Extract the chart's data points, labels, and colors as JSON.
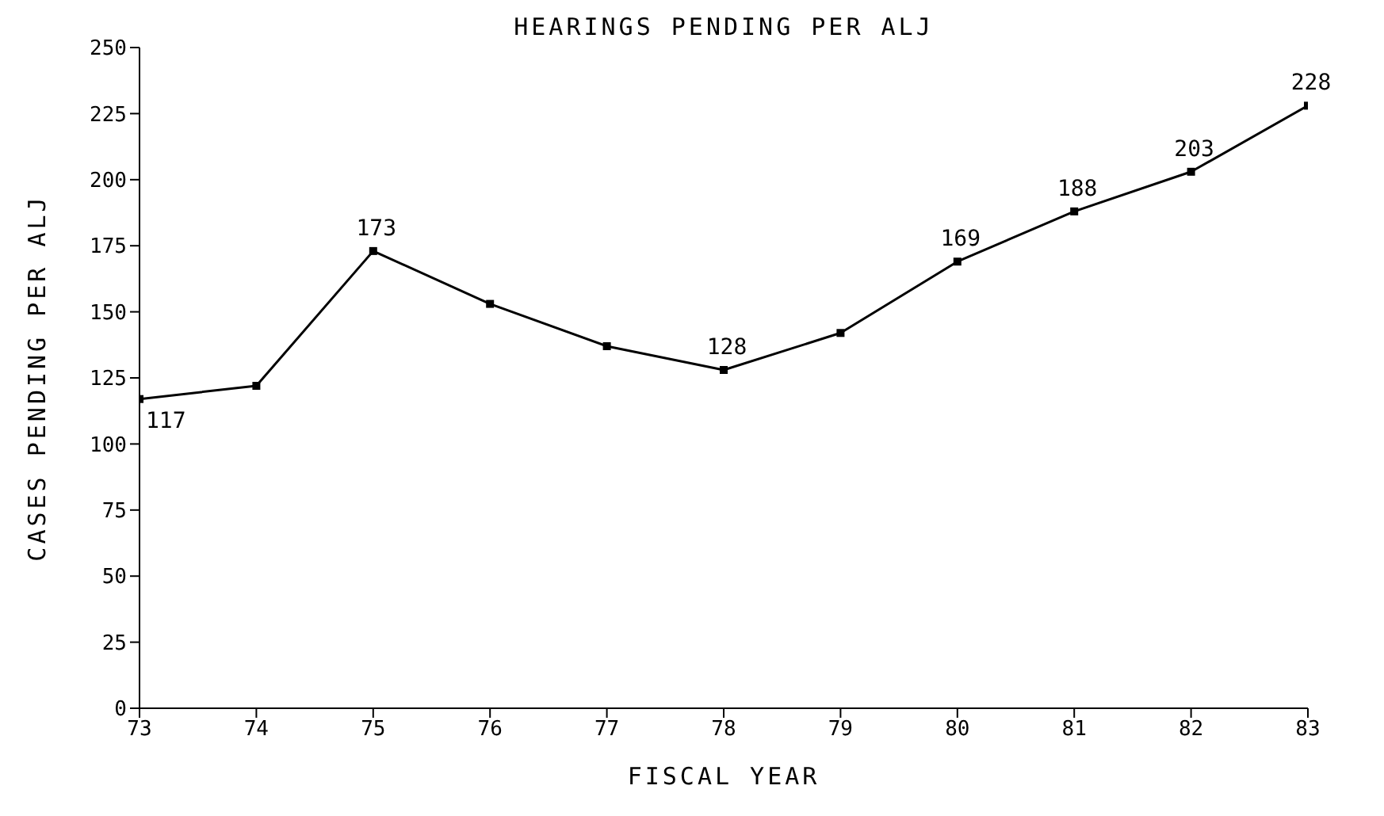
{
  "chart_data": {
    "type": "line",
    "title": "HEARINGS PENDING PER ALJ",
    "xlabel": "FISCAL YEAR",
    "ylabel": "CASES PENDING PER ALJ",
    "x": [
      73,
      74,
      75,
      76,
      77,
      78,
      79,
      80,
      81,
      82,
      83
    ],
    "values": [
      117,
      122,
      173,
      153,
      137,
      128,
      142,
      169,
      188,
      203,
      228
    ],
    "value_labels": [
      "117",
      null,
      "173",
      null,
      null,
      "128",
      null,
      "169",
      "188",
      "203",
      "228"
    ],
    "color": "#000000",
    "marker": "square",
    "grid": false,
    "legend": false,
    "xlim": [
      73,
      83
    ],
    "xticks": [
      73,
      74,
      75,
      76,
      77,
      78,
      79,
      80,
      81,
      82,
      83
    ],
    "ylim": [
      0,
      250
    ],
    "yticks": [
      0,
      25,
      50,
      75,
      100,
      125,
      150,
      175,
      200,
      225,
      250
    ]
  }
}
